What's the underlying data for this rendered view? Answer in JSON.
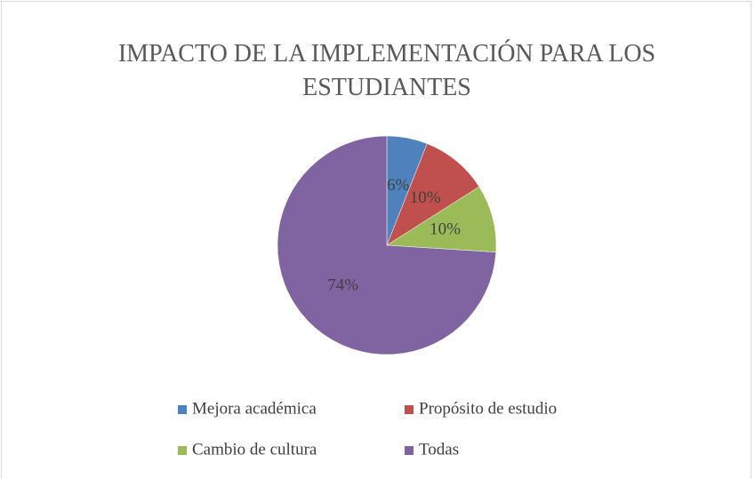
{
  "chart_data": {
    "type": "pie",
    "title": "IMPACTO DE LA IMPLEMENTACIÓN PARA LOS ESTUDIANTES",
    "categories": [
      "Mejora académica",
      "Propósito de estudio",
      "Cambio de cultura",
      "Todas"
    ],
    "values": [
      6,
      10,
      10,
      74
    ],
    "value_labels": [
      "6%",
      "10%",
      "10%",
      "74%"
    ],
    "colors": [
      "#4f81bd",
      "#c0504d",
      "#9bbb59",
      "#8064a2"
    ],
    "legend": "bottom"
  }
}
